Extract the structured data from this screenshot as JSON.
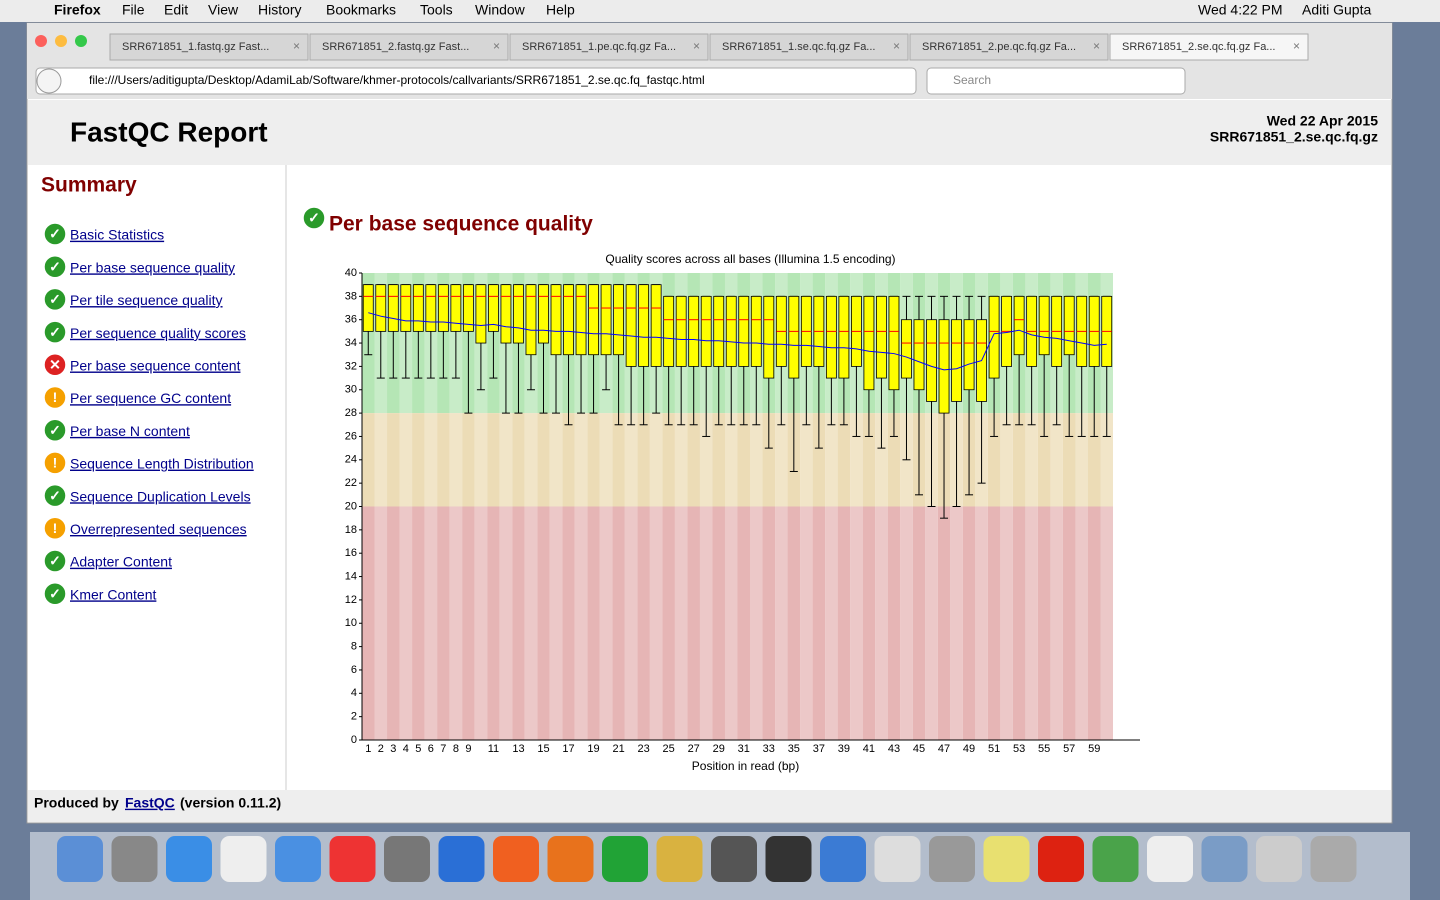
{
  "menubar": {
    "app": "Firefox",
    "items": [
      "File",
      "Edit",
      "View",
      "History",
      "Bookmarks",
      "Tools",
      "Window",
      "Help"
    ],
    "clock": "Wed 4:22 PM",
    "user": "Aditi Gupta"
  },
  "tabs": [
    "SRR671851_1.fastq.gz Fast...",
    "SRR671851_2.fastq.gz Fast...",
    "SRR671851_1.pe.qc.fq.gz Fa...",
    "SRR671851_1.se.qc.fq.gz Fa...",
    "SRR671851_2.pe.qc.fq.gz Fa...",
    "SRR671851_2.se.qc.fq.gz Fa..."
  ],
  "url": "file:///Users/aditigupta/Desktop/AdamiLab/Software/khmer-protocols/callvariants/SRR671851_2.se.qc.fq_fastqc.html",
  "search": "Search",
  "header": {
    "title": "FastQC Report",
    "date": "Wed 22 Apr 2015",
    "file": "SRR671851_2.se.qc.fq.gz"
  },
  "summary": {
    "title": "Summary",
    "items": [
      {
        "label": "Basic Statistics",
        "status": "pass"
      },
      {
        "label": "Per base sequence quality",
        "status": "pass"
      },
      {
        "label": "Per tile sequence quality",
        "status": "pass"
      },
      {
        "label": "Per sequence quality scores",
        "status": "pass"
      },
      {
        "label": "Per base sequence content",
        "status": "fail"
      },
      {
        "label": "Per sequence GC content",
        "status": "warn"
      },
      {
        "label": "Per base N content",
        "status": "pass"
      },
      {
        "label": "Sequence Length Distribution",
        "status": "warn"
      },
      {
        "label": "Sequence Duplication Levels",
        "status": "pass"
      },
      {
        "label": "Overrepresented sequences",
        "status": "warn"
      },
      {
        "label": "Adapter Content",
        "status": "pass"
      },
      {
        "label": "Kmer Content",
        "status": "pass"
      }
    ]
  },
  "section": "Per base sequence quality",
  "chart_data": {
    "type": "box",
    "title": "Quality scores across all bases (Illumina 1.5 encoding)",
    "x_label": "Position in read (bp)",
    "categories": [
      "1",
      "2",
      "3",
      "4",
      "5",
      "6",
      "7",
      "8",
      "9",
      null,
      "11",
      null,
      "13",
      null,
      "15",
      null,
      "17",
      null,
      "19",
      null,
      "21",
      null,
      "23",
      null,
      "25",
      null,
      "27",
      null,
      "29",
      null,
      "31",
      null,
      "33",
      null,
      "35",
      null,
      "37",
      null,
      "39",
      null,
      "41",
      null,
      "43",
      null,
      "45",
      null,
      "47",
      null,
      "49",
      null,
      "51",
      null,
      "53",
      null,
      "55",
      null,
      "57",
      null,
      "59",
      null
    ],
    "low": [
      33,
      31,
      31,
      31,
      31,
      31,
      31,
      31,
      28,
      30,
      31,
      28,
      28,
      30,
      28,
      28,
      27,
      28,
      28,
      30,
      27,
      27,
      27,
      28,
      27,
      27,
      27,
      26,
      27,
      27,
      27,
      27,
      25,
      27,
      23,
      27,
      25,
      27,
      27,
      26,
      26,
      25,
      26,
      24,
      21,
      20,
      19,
      20,
      21,
      22,
      26,
      27,
      27,
      27,
      26,
      27,
      26,
      26,
      26,
      26
    ],
    "q1": [
      35,
      35,
      35,
      35,
      35,
      35,
      35,
      35,
      35,
      34,
      35,
      34,
      34,
      33,
      34,
      33,
      33,
      33,
      33,
      33,
      33,
      32,
      32,
      32,
      32,
      32,
      32,
      32,
      32,
      32,
      32,
      32,
      31,
      32,
      31,
      32,
      32,
      31,
      31,
      32,
      30,
      31,
      30,
      31,
      30,
      29,
      28,
      29,
      30,
      29,
      31,
      32,
      33,
      32,
      33,
      32,
      33,
      32,
      32,
      32
    ],
    "median": [
      38,
      38,
      38,
      38,
      38,
      38,
      38,
      38,
      38,
      38,
      38,
      38,
      38,
      38,
      38,
      38,
      38,
      38,
      37,
      37,
      37,
      37,
      37,
      37,
      36,
      36,
      36,
      36,
      36,
      36,
      36,
      36,
      36,
      35,
      35,
      35,
      35,
      35,
      35,
      35,
      35,
      35,
      35,
      34,
      34,
      34,
      34,
      34,
      34,
      34,
      35,
      35,
      36,
      35,
      35,
      35,
      35,
      35,
      35,
      35
    ],
    "q3": [
      39,
      39,
      39,
      39,
      39,
      39,
      39,
      39,
      39,
      39,
      39,
      39,
      39,
      39,
      39,
      39,
      39,
      39,
      39,
      39,
      39,
      39,
      39,
      39,
      38,
      38,
      38,
      38,
      38,
      38,
      38,
      38,
      38,
      38,
      38,
      38,
      38,
      38,
      38,
      38,
      38,
      38,
      38,
      36,
      36,
      36,
      36,
      36,
      36,
      36,
      38,
      38,
      38,
      38,
      38,
      38,
      38,
      38,
      38,
      38
    ],
    "high": [
      39,
      39,
      39,
      39,
      39,
      39,
      39,
      39,
      39,
      39,
      39,
      39,
      39,
      39,
      39,
      39,
      39,
      39,
      39,
      39,
      39,
      39,
      39,
      39,
      38,
      38,
      38,
      38,
      38,
      38,
      38,
      38,
      38,
      38,
      38,
      38,
      38,
      38,
      38,
      38,
      38,
      38,
      38,
      38,
      38,
      38,
      38,
      38,
      38,
      38,
      38,
      38,
      38,
      38,
      38,
      38,
      38,
      38,
      38,
      38
    ],
    "mean": [
      36.6,
      36.3,
      36.1,
      35.9,
      35.9,
      35.8,
      35.8,
      35.7,
      35.6,
      35.5,
      35.6,
      35.4,
      35.3,
      35.1,
      35.1,
      35.0,
      35.0,
      34.9,
      34.8,
      34.8,
      34.7,
      34.6,
      34.5,
      34.5,
      34.4,
      34.3,
      34.3,
      34.2,
      34.2,
      34.1,
      34.0,
      34.0,
      33.9,
      33.9,
      33.8,
      33.8,
      33.7,
      33.6,
      33.6,
      33.5,
      33.3,
      33.2,
      33.1,
      32.8,
      32.4,
      32.0,
      31.7,
      31.8,
      32.2,
      32.5,
      34.8,
      34.9,
      35.1,
      34.7,
      34.5,
      34.4,
      34.2,
      34.0,
      33.8,
      33.9
    ],
    "box_color": "#ffff00",
    "median_color": "#ff0000",
    "mean_color": "#0000ff",
    "zones": [
      {
        "from": 28,
        "to": 40,
        "color": "#b5e6b5"
      },
      {
        "from": 20,
        "to": 28,
        "color": "#ecdcb6"
      },
      {
        "from": 0,
        "to": 20,
        "color": "#e6b5b5"
      }
    ],
    "ylim": [
      0,
      40
    ],
    "yticks": [
      0,
      2,
      4,
      6,
      8,
      10,
      12,
      14,
      16,
      18,
      20,
      22,
      24,
      26,
      28,
      30,
      32,
      34,
      36,
      38,
      40
    ]
  },
  "footer": {
    "prefix": "Produced by",
    "link": "FastQC",
    "version": "(version 0.11.2)"
  }
}
